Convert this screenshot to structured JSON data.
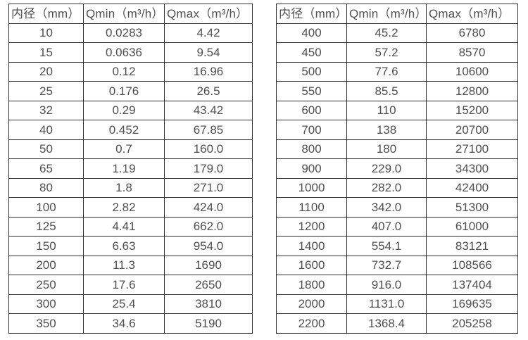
{
  "page": {
    "background": "#ffffff",
    "border_color": "#313131",
    "text_color": "#4f4f4f"
  },
  "tables": [
    {
      "id": "small-diameter",
      "headers": [
        "内径（mm）",
        "Qmin（m³/h）",
        "Qmax（m³/h）"
      ],
      "rows": [
        [
          "10",
          "0.0283",
          "4.42"
        ],
        [
          "15",
          "0.0636",
          "9.54"
        ],
        [
          "20",
          "0.12",
          "16.96"
        ],
        [
          "25",
          "0.176",
          "26.5"
        ],
        [
          "32",
          "0.29",
          "43.42"
        ],
        [
          "40",
          "0.452",
          "67.85"
        ],
        [
          "50",
          "0.7",
          "160.0"
        ],
        [
          "65",
          "1.19",
          "179.0"
        ],
        [
          "80",
          "1.8",
          "271.0"
        ],
        [
          "100",
          "2.82",
          "424.0"
        ],
        [
          "125",
          "4.41",
          "662.0"
        ],
        [
          "150",
          "6.63",
          "954.0"
        ],
        [
          "200",
          "11.3",
          "1690"
        ],
        [
          "250",
          "17.6",
          "2650"
        ],
        [
          "300",
          "25.4",
          "3810"
        ],
        [
          "350",
          "34.6",
          "5190"
        ]
      ]
    },
    {
      "id": "large-diameter",
      "headers": [
        "内径（mm）",
        "Qmin（m³/h）",
        "Qmax（m³/h）"
      ],
      "rows": [
        [
          "400",
          "45.2",
          "6780"
        ],
        [
          "450",
          "57.2",
          "8570"
        ],
        [
          "500",
          "77.6",
          "10600"
        ],
        [
          "550",
          "85.5",
          "12800"
        ],
        [
          "600",
          "110",
          "15200"
        ],
        [
          "700",
          "138",
          "20700"
        ],
        [
          "800",
          "180",
          "27100"
        ],
        [
          "900",
          "229.0",
          "34300"
        ],
        [
          "1000",
          "282.0",
          "42400"
        ],
        [
          "1100",
          "342.0",
          "51300"
        ],
        [
          "1200",
          "407.0",
          "61000"
        ],
        [
          "1400",
          "554.1",
          "83121"
        ],
        [
          "1600",
          "732.7",
          "108566"
        ],
        [
          "1800",
          "916.0",
          "137404"
        ],
        [
          "2000",
          "1131.0",
          "169635"
        ],
        [
          "2200",
          "1368.4",
          "205258"
        ]
      ]
    }
  ]
}
